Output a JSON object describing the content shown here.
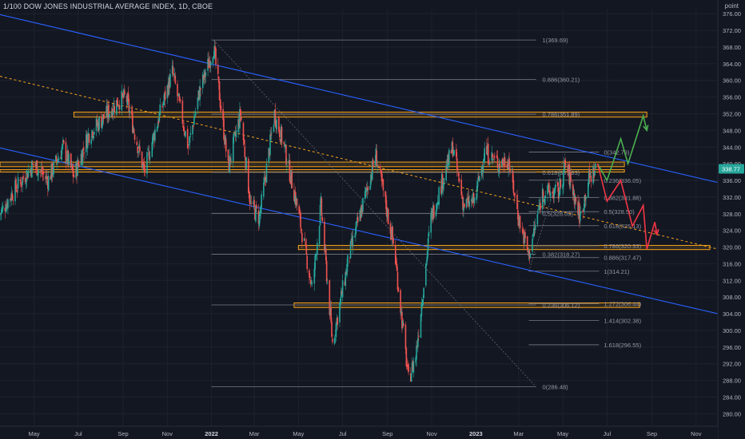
{
  "header": {
    "title": "1/100 DOW JONES INDUSTRIAL AVERAGE INDEX, 1D, CBOE",
    "unit_label": "point"
  },
  "chart_data": {
    "type": "candlestick",
    "ylim": [
      277,
      377
    ],
    "y_ticks": [
      376,
      372,
      368,
      364,
      360,
      356,
      352,
      348,
      344,
      340,
      336,
      332,
      328,
      324,
      320,
      316,
      312,
      308,
      304,
      300,
      296,
      292,
      288,
      284,
      280
    ],
    "x_tick_labels": [
      "May",
      "Jul",
      "Sep",
      "Nov",
      "2022",
      "Mar",
      "May",
      "Jul",
      "Sep",
      "Nov",
      "2023",
      "Mar",
      "May",
      "Jul",
      "Sep",
      "Nov"
    ],
    "x_tick_dates": [
      "2021-05-01",
      "2021-07-01",
      "2021-09-01",
      "2021-11-01",
      "2022-01-01",
      "2022-03-01",
      "2022-05-01",
      "2022-07-01",
      "2022-09-01",
      "2022-11-01",
      "2023-01-01",
      "2023-03-01",
      "2023-05-01",
      "2023-07-01",
      "2023-09-01",
      "2023-11-01"
    ],
    "x_range_dates": [
      "2021-03-15",
      "2023-12-01"
    ],
    "last_price": "338.77",
    "price_series_approx": [
      [
        "2021-03-15",
        328
      ],
      [
        "2021-04-01",
        333
      ],
      [
        "2021-05-01",
        340
      ],
      [
        "2021-05-20",
        336
      ],
      [
        "2021-06-10",
        344
      ],
      [
        "2021-06-25",
        337
      ],
      [
        "2021-07-15",
        347
      ],
      [
        "2021-08-10",
        352
      ],
      [
        "2021-08-25",
        355
      ],
      [
        "2021-09-05",
        356
      ],
      [
        "2021-09-30",
        338
      ],
      [
        "2021-10-15",
        348
      ],
      [
        "2021-11-01",
        358
      ],
      [
        "2021-11-08",
        362
      ],
      [
        "2021-11-30",
        344
      ],
      [
        "2021-12-15",
        357
      ],
      [
        "2022-01-04",
        368
      ],
      [
        "2022-01-24",
        339
      ],
      [
        "2022-02-10",
        352
      ],
      [
        "2022-02-24",
        330
      ],
      [
        "2022-03-08",
        327
      ],
      [
        "2022-03-29",
        352
      ],
      [
        "2022-04-10",
        345
      ],
      [
        "2022-04-29",
        330
      ],
      [
        "2022-05-20",
        310
      ],
      [
        "2022-06-01",
        330
      ],
      [
        "2022-06-17",
        297
      ],
      [
        "2022-07-10",
        318
      ],
      [
        "2022-08-16",
        342
      ],
      [
        "2022-09-10",
        320
      ],
      [
        "2022-09-30",
        288
      ],
      [
        "2022-10-10",
        294
      ],
      [
        "2022-10-31",
        327
      ],
      [
        "2022-11-30",
        344
      ],
      [
        "2022-12-15",
        330
      ],
      [
        "2022-12-30",
        331
      ],
      [
        "2023-01-13",
        343
      ],
      [
        "2023-02-01",
        340
      ],
      [
        "2023-02-15",
        341
      ],
      [
        "2023-03-01",
        327
      ],
      [
        "2023-03-15",
        318
      ],
      [
        "2023-04-03",
        333
      ],
      [
        "2023-04-25",
        333
      ],
      [
        "2023-05-05",
        340
      ],
      [
        "2023-05-25",
        327
      ],
      [
        "2023-06-05",
        336
      ],
      [
        "2023-06-15",
        338.77
      ]
    ],
    "fib_high_levels": [
      {
        "label": "1(369.69)",
        "value": 369.69
      },
      {
        "label": "0.886(360.21)",
        "value": 360.21
      },
      {
        "label": "0.786(351.89)",
        "value": 351.89
      },
      {
        "label": "0.618(337.93)",
        "value": 337.93
      },
      {
        "label": "0.5(328.09)",
        "value": 328.09
      },
      {
        "label": "0.382(318.27)",
        "value": 318.27
      },
      {
        "label": "0.236(306.12)",
        "value": 306.12
      },
      {
        "label": "0(286.48)",
        "value": 286.48
      }
    ],
    "fib_ext_levels": [
      {
        "label": "0(342.79)",
        "value": 342.79
      },
      {
        "label": "0.236(336.05)",
        "value": 336.05
      },
      {
        "label": "0.382(331.88)",
        "value": 331.88
      },
      {
        "label": "0.5(328.50)",
        "value": 328.5
      },
      {
        "label": "0.618(325.13)",
        "value": 325.13
      },
      {
        "label": "0.786(320.33)",
        "value": 320.33
      },
      {
        "label": "0.886(317.47)",
        "value": 317.47
      },
      {
        "label": "1(314.21)",
        "value": 314.21
      },
      {
        "label": "1.272(306.44)",
        "value": 306.44
      },
      {
        "label": "1.414(302.38)",
        "value": 302.38
      },
      {
        "label": "1.618(296.55)",
        "value": 296.55
      }
    ],
    "support_resistance_zones": [
      {
        "from": "2021-06-25",
        "to": "2023-08-25",
        "low": 351.2,
        "high": 352.4
      },
      {
        "from": "2021-03-15",
        "to": "2023-07-25",
        "low": 339.3,
        "high": 340.4
      },
      {
        "from": "2021-03-15",
        "to": "2023-07-25",
        "low": 338.0,
        "high": 338.6
      },
      {
        "from": "2022-05-01",
        "to": "2023-11-20",
        "low": 319.4,
        "high": 320.4
      },
      {
        "from": "2022-04-25",
        "to": "2023-08-15",
        "low": 305.5,
        "high": 306.6
      }
    ],
    "channel_lines": [
      {
        "points": [
          [
            "2021-03-15",
            375.8
          ],
          [
            "2023-12-01",
            335.5
          ]
        ],
        "color": "#2962ff"
      },
      {
        "points": [
          [
            "2021-03-15",
            343.8
          ],
          [
            "2023-12-01",
            304.0
          ]
        ],
        "color": "#2962ff"
      }
    ],
    "trend_line_dashed": {
      "points": [
        [
          "2021-03-15",
          361.0
        ],
        [
          "2023-12-01",
          319.5
        ]
      ],
      "color": "#f7a21b"
    },
    "projection_paths": [
      {
        "color": "#4caf50",
        "points": [
          [
            "2023-06-18",
            340
          ],
          [
            "2023-07-01",
            336
          ],
          [
            "2023-07-20",
            346
          ],
          [
            "2023-07-30",
            340
          ],
          [
            "2023-08-20",
            351.5
          ],
          [
            "2023-08-25",
            348
          ]
        ]
      },
      {
        "color": "#f23645",
        "points": [
          [
            "2023-06-18",
            340
          ],
          [
            "2023-07-01",
            331
          ],
          [
            "2023-07-20",
            336
          ],
          [
            "2023-08-05",
            325
          ],
          [
            "2023-08-20",
            330
          ],
          [
            "2023-08-25",
            319.5
          ],
          [
            "2023-09-05",
            326
          ],
          [
            "2023-09-08",
            323
          ]
        ]
      }
    ],
    "colors": {
      "background": "#131722",
      "up": "#26a69a",
      "down": "#ef5350",
      "fib_line": "#787b86",
      "zone": "#f7a21b",
      "price_label_bg": "#26a69a"
    }
  }
}
